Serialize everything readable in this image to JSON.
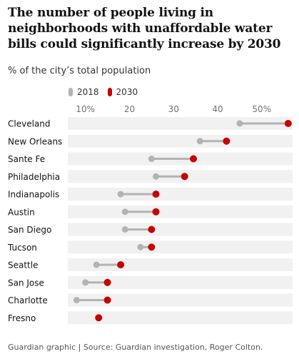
{
  "title": "The number of people living in neighborhoods with unaffordable water bills could significantly increase by 2030",
  "subtitle": "% of the city’s total population",
  "source": "Guardian graphic | Source: Guardian investigation, Roger Colton.",
  "colors": {
    "y2018": "#b3b3b3",
    "y2030": "#c70000",
    "row_band": "#f1f1f1",
    "tick_text": "#707070"
  },
  "legend": [
    {
      "label": "2018",
      "color": "#b3b3b3"
    },
    {
      "label": "2030",
      "color": "#c70000"
    }
  ],
  "chart_data": {
    "type": "dumbbell",
    "title": "The number of people living in neighborhoods with unaffordable water bills could significantly increase by 2030",
    "subtitle": "% of the city’s total population",
    "xlim": [
      6,
      57
    ],
    "xticks": [
      10,
      20,
      30,
      40,
      50
    ],
    "xtick_labels": [
      "10%",
      "20",
      "30",
      "40",
      "50%"
    ],
    "categories": [
      "Cleveland",
      "New Orleans",
      "Sante Fe",
      "Philadelphia",
      "Indianapolis",
      "Austin",
      "San Diego",
      "Tucson",
      "Seattle",
      "San Jose",
      "Charlotte",
      "Fresno"
    ],
    "series": [
      {
        "name": "2018",
        "values": [
          45,
          36,
          25,
          26,
          18,
          19,
          19,
          22.5,
          12.5,
          10,
          8,
          13
        ]
      },
      {
        "name": "2030",
        "values": [
          56,
          42,
          34.5,
          32.5,
          26,
          26,
          25,
          25,
          18,
          15,
          15,
          13
        ]
      }
    ]
  }
}
